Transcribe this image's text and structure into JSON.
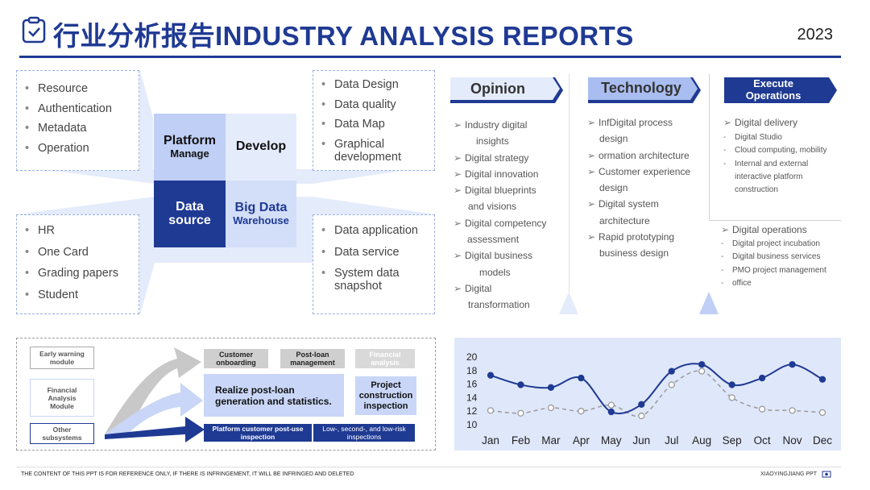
{
  "header": {
    "title_cn": "行业分析报告",
    "title_en": "INDUSTRY ANALYSIS REPORTS",
    "year": "2023"
  },
  "left_boxes": {
    "top_left": [
      "Resource",
      "Authentication",
      "Metadata",
      "Operation"
    ],
    "top_right": [
      "Data Design",
      "Data quality",
      "Data Map",
      "Graphical development"
    ],
    "bottom_left": [
      "HR",
      "One Card",
      "Grading papers",
      "Student"
    ],
    "bottom_right": [
      "Data application",
      "Data service",
      "System data snapshot"
    ]
  },
  "center": {
    "platform": "Platform",
    "manage": "Manage",
    "develop": "Develop",
    "data": "Data",
    "source": "source",
    "bigdata": "Big Data",
    "warehouse": "Warehouse"
  },
  "columns": {
    "opinion": {
      "title": "Opinion",
      "items": [
        [
          "Industry digital",
          "insights"
        ],
        [
          "Digital strategy"
        ],
        [
          "Digital innovation"
        ],
        [
          "Digital blueprints",
          "and visions"
        ],
        [
          "Digital competency",
          "assessment"
        ],
        [
          "Digital business",
          "models"
        ],
        [
          "Digital",
          "transformation"
        ]
      ]
    },
    "technology": {
      "title": "Technology",
      "items": [
        [
          "InfDigital process",
          "design"
        ],
        [
          "ormation architecture"
        ],
        [
          "Customer experience",
          "design"
        ],
        [
          "Digital system",
          "architecture"
        ],
        [
          "Rapid prototyping",
          "business design"
        ]
      ]
    },
    "execute": {
      "title_line1": "Execute",
      "title_line2": "Operations",
      "top_head": "Digital delivery",
      "top_items": [
        "Digital Studio",
        "Cloud computing, mobility",
        "Internal and external",
        "interactive platform",
        "construction"
      ],
      "bottom_head": "Digital operations",
      "bottom_items": [
        "Digital project incubation",
        "Digital business services",
        "PMO project management",
        "office"
      ]
    }
  },
  "flow": {
    "side": [
      "Early warning module",
      "Financial Analysis Module",
      "Other subsystems"
    ],
    "top_tags": [
      "Customer onboarding",
      "Post-loan management",
      "Financial analysis"
    ],
    "mid_main": "Realize post-loan generation and statistics.",
    "mid_side": "Project construction inspection",
    "bottom": [
      "Platform customer post-use inspection",
      "Low-, second-, and low-risk inspections"
    ]
  },
  "chart_data": {
    "type": "line",
    "categories": [
      "Jan",
      "Feb",
      "Mar",
      "Apr",
      "May",
      "Jun",
      "Jul",
      "Aug",
      "Sep",
      "Oct",
      "Nov",
      "Dec"
    ],
    "yticks": [
      10,
      12,
      14,
      16,
      18,
      20
    ],
    "ylim": [
      10,
      20
    ],
    "series": [
      {
        "values": [
          17.3,
          15.9,
          15.5,
          16.9,
          11.9,
          13.0,
          17.9,
          18.9,
          15.9,
          16.9,
          18.9,
          16.7
        ],
        "color": "#1f3a93",
        "style": "solid"
      },
      {
        "values": [
          12.1,
          11.7,
          12.5,
          12.0,
          12.9,
          11.3,
          15.9,
          17.9,
          14.0,
          12.3,
          12.1,
          11.8
        ],
        "color": "#9a9a9a",
        "style": "dashed"
      }
    ]
  },
  "footer": {
    "left": "THE CONTENT OF THIS PPT IS FOR REFERENCE ONLY, IF THERE IS INFRINGEMENT, IT WILL BE INFRINGED AND DELETED",
    "right": "XIAOYINGJIANG PPT"
  },
  "colors": {
    "brand": "#1f3a93",
    "light": "#c9d6f7",
    "pale": "#e4ebfb",
    "chart_bg": "#dfe7fa"
  }
}
